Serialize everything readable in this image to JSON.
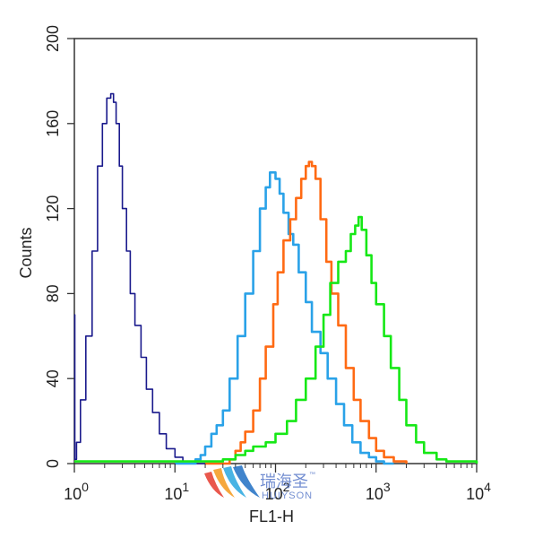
{
  "chart_data": {
    "type": "line",
    "xlabel": "FL1-H",
    "ylabel": "Counts",
    "x_scale": "log",
    "xlim": [
      1,
      10000
    ],
    "ylim": [
      0,
      200
    ],
    "grid": false,
    "legend": "none",
    "x_ticks": [
      {
        "value": 1,
        "base": "10",
        "exp": "0"
      },
      {
        "value": 10,
        "base": "10",
        "exp": "1"
      },
      {
        "value": 100,
        "base": "10",
        "exp": "2"
      },
      {
        "value": 1000,
        "base": "10",
        "exp": "3"
      },
      {
        "value": 10000,
        "base": "10",
        "exp": "4"
      }
    ],
    "y_ticks": [
      "0",
      "40",
      "80",
      "120",
      "160",
      "200"
    ],
    "series": [
      {
        "color": "#1a1a8c",
        "x": [
          1,
          1.01,
          1.05,
          1.15,
          1.3,
          1.5,
          1.7,
          1.9,
          2.1,
          2.3,
          2.45,
          2.6,
          2.8,
          3.0,
          3.3,
          3.6,
          4.0,
          4.6,
          5.2,
          6.0,
          7.0,
          8.2,
          10,
          12,
          14,
          16,
          18,
          20,
          22
        ],
        "y": [
          70,
          2,
          10,
          30,
          60,
          100,
          140,
          160,
          172,
          174,
          170,
          160,
          140,
          120,
          100,
          80,
          65,
          50,
          35,
          24,
          14,
          7,
          3,
          1,
          1,
          0,
          0,
          0,
          0
        ]
      },
      {
        "color": "#2aa2e8",
        "x": [
          10,
          14,
          16,
          18,
          20,
          23,
          26,
          30,
          35,
          42,
          50,
          60,
          70,
          80,
          88,
          95,
          100,
          110,
          120,
          135,
          150,
          170,
          200,
          230,
          280,
          330,
          400,
          480,
          580,
          700,
          850,
          1000,
          1200,
          1500
        ],
        "y": [
          0,
          0,
          2,
          4,
          8,
          14,
          18,
          25,
          40,
          60,
          80,
          100,
          120,
          130,
          137,
          137,
          134,
          127,
          118,
          108,
          103,
          90,
          76,
          62,
          52,
          40,
          28,
          18,
          10,
          5,
          3,
          1,
          0,
          0
        ]
      },
      {
        "color": "#ff6a13",
        "x": [
          20,
          30,
          35,
          40,
          45,
          50,
          60,
          70,
          80,
          95,
          105,
          120,
          140,
          160,
          180,
          200,
          215,
          230,
          250,
          280,
          320,
          360,
          420,
          500,
          600,
          700,
          850,
          1000,
          1200,
          1500,
          2000
        ],
        "y": [
          0,
          0,
          2,
          6,
          10,
          15,
          25,
          40,
          55,
          75,
          90,
          105,
          115,
          125,
          134,
          140,
          142,
          140,
          134,
          115,
          95,
          80,
          65,
          45,
          30,
          20,
          12,
          6,
          3,
          1,
          0
        ]
      },
      {
        "color": "#16e816",
        "x": [
          1,
          20,
          30,
          40,
          50,
          60,
          80,
          100,
          130,
          160,
          200,
          250,
          300,
          350,
          420,
          500,
          560,
          620,
          670,
          720,
          800,
          900,
          1000,
          1200,
          1400,
          1700,
          2000,
          2500,
          3000,
          4000,
          5000,
          10000
        ],
        "y": [
          1,
          1,
          2,
          4,
          6,
          8,
          10,
          14,
          20,
          30,
          40,
          55,
          70,
          85,
          95,
          100,
          108,
          112,
          116,
          110,
          98,
          85,
          75,
          60,
          45,
          30,
          18,
          10,
          5,
          2,
          1,
          0
        ]
      }
    ]
  },
  "watermark": {
    "text_cn": "瑞海圣",
    "text_en": "HUIYSON",
    "trademark": "™"
  }
}
